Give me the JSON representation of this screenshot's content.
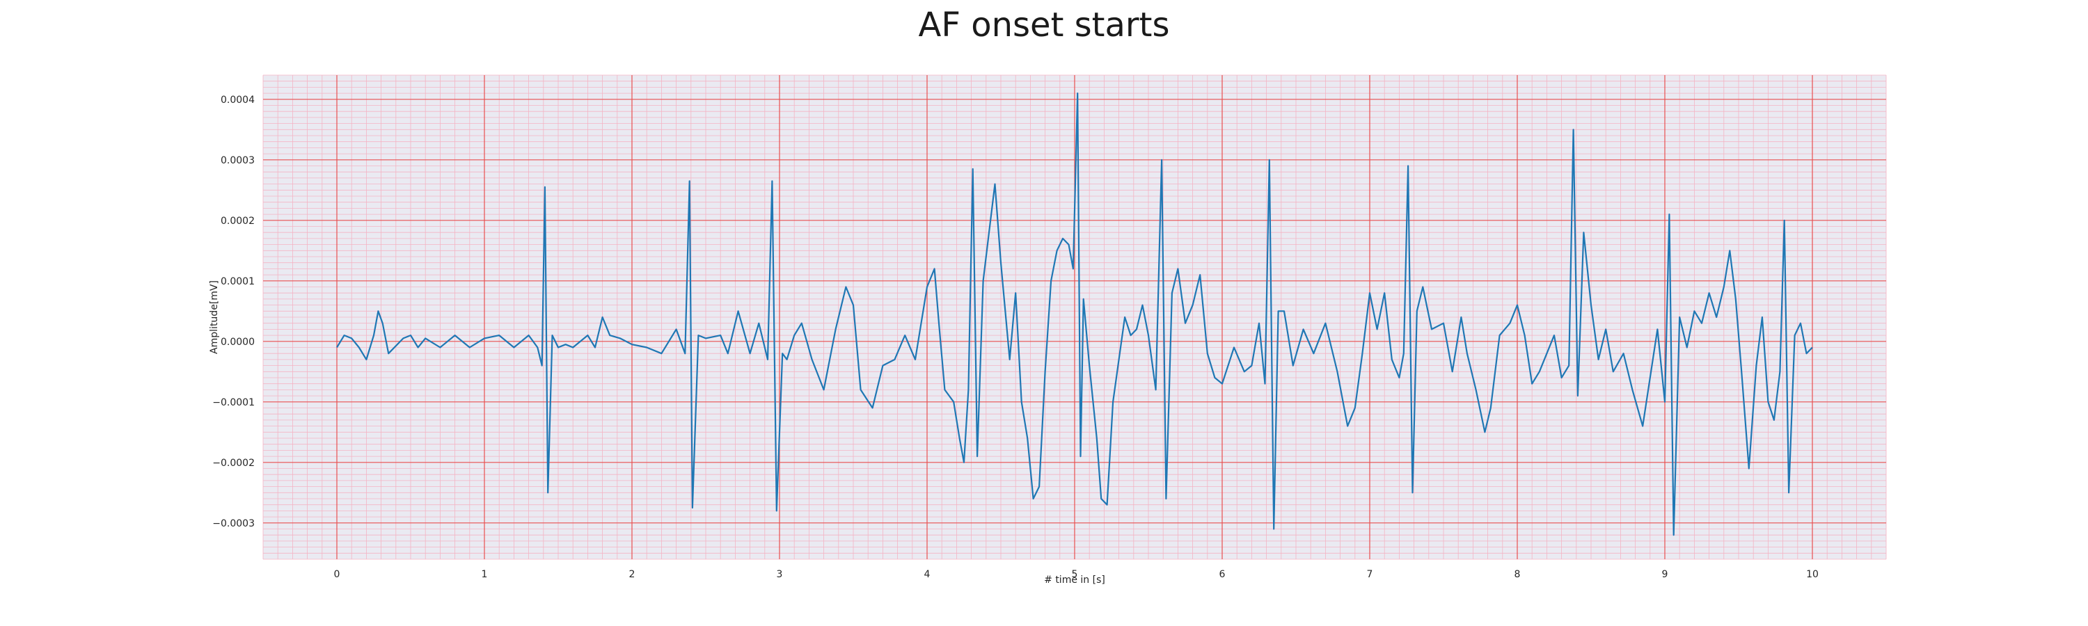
{
  "chart_data": {
    "type": "line",
    "title": "AF onset starts",
    "xlabel": "# time in [s]",
    "ylabel": "Amplitude[mV]",
    "xlim": [
      -0.5,
      10.5
    ],
    "ylim": [
      -0.00036,
      0.00044
    ],
    "x_ticks": [
      0,
      1,
      2,
      3,
      4,
      5,
      6,
      7,
      8,
      9,
      10
    ],
    "x_tick_labels": [
      "0",
      "1",
      "2",
      "3",
      "4",
      "5",
      "6",
      "7",
      "8",
      "9",
      "10"
    ],
    "y_ticks": [
      -0.0003,
      -0.0002,
      -0.0001,
      0,
      0.0001,
      0.0002,
      0.0003,
      0.0004
    ],
    "y_tick_labels": [
      "−0.0003",
      "−0.0002",
      "−0.0001",
      "0.0000",
      "0.0001",
      "0.0002",
      "0.0003",
      "0.0004"
    ],
    "grid": true,
    "minor_grid": true,
    "series": [
      {
        "color": "#1f77b4",
        "points": [
          [
            0.0,
            -1e-05
          ],
          [
            0.05,
            1e-05
          ],
          [
            0.1,
            5e-06
          ],
          [
            0.15,
            -1e-05
          ],
          [
            0.2,
            -3e-05
          ],
          [
            0.25,
            1e-05
          ],
          [
            0.28,
            5e-05
          ],
          [
            0.31,
            3e-05
          ],
          [
            0.35,
            -2e-05
          ],
          [
            0.45,
            5e-06
          ],
          [
            0.5,
            1e-05
          ],
          [
            0.55,
            -1e-05
          ],
          [
            0.6,
            5e-06
          ],
          [
            0.7,
            -1e-05
          ],
          [
            0.8,
            1e-05
          ],
          [
            0.9,
            -1e-05
          ],
          [
            1.0,
            5e-06
          ],
          [
            1.1,
            1e-05
          ],
          [
            1.2,
            -1e-05
          ],
          [
            1.3,
            1e-05
          ],
          [
            1.36,
            -1e-05
          ],
          [
            1.39,
            -4e-05
          ],
          [
            1.41,
            0.000255
          ],
          [
            1.43,
            -0.00025
          ],
          [
            1.46,
            1e-05
          ],
          [
            1.5,
            -1e-05
          ],
          [
            1.55,
            -5e-06
          ],
          [
            1.6,
            -1e-05
          ],
          [
            1.7,
            1e-05
          ],
          [
            1.75,
            -1e-05
          ],
          [
            1.8,
            4e-05
          ],
          [
            1.85,
            1e-05
          ],
          [
            1.92,
            5e-06
          ],
          [
            2.0,
            -5e-06
          ],
          [
            2.1,
            -1e-05
          ],
          [
            2.2,
            -2e-05
          ],
          [
            2.3,
            2e-05
          ],
          [
            2.36,
            -2e-05
          ],
          [
            2.39,
            0.000265
          ],
          [
            2.41,
            -0.000275
          ],
          [
            2.45,
            1e-05
          ],
          [
            2.5,
            5e-06
          ],
          [
            2.6,
            1e-05
          ],
          [
            2.65,
            -2e-05
          ],
          [
            2.72,
            5e-05
          ],
          [
            2.8,
            -2e-05
          ],
          [
            2.86,
            3e-05
          ],
          [
            2.92,
            -3e-05
          ],
          [
            2.95,
            0.000265
          ],
          [
            2.98,
            -0.00028
          ],
          [
            3.02,
            -2e-05
          ],
          [
            3.05,
            -3e-05
          ],
          [
            3.1,
            1e-05
          ],
          [
            3.15,
            3e-05
          ],
          [
            3.22,
            -3e-05
          ],
          [
            3.3,
            -8e-05
          ],
          [
            3.38,
            2e-05
          ],
          [
            3.45,
            9e-05
          ],
          [
            3.5,
            6e-05
          ],
          [
            3.55,
            -8e-05
          ],
          [
            3.63,
            -0.00011
          ],
          [
            3.7,
            -4e-05
          ],
          [
            3.78,
            -3e-05
          ],
          [
            3.85,
            1e-05
          ],
          [
            3.92,
            -3e-05
          ],
          [
            4.0,
            9e-05
          ],
          [
            4.05,
            0.00012
          ],
          [
            4.08,
            3e-05
          ],
          [
            4.12,
            -8e-05
          ],
          [
            4.18,
            -0.0001
          ],
          [
            4.22,
            -0.00016
          ],
          [
            4.25,
            -0.0002
          ],
          [
            4.28,
            -8e-05
          ],
          [
            4.31,
            0.000285
          ],
          [
            4.34,
            -0.00019
          ],
          [
            4.38,
            0.0001
          ],
          [
            4.42,
            0.00018
          ],
          [
            4.46,
            0.00026
          ],
          [
            4.5,
            0.00013
          ],
          [
            4.56,
            -3e-05
          ],
          [
            4.6,
            8e-05
          ],
          [
            4.64,
            -0.0001
          ],
          [
            4.68,
            -0.00016
          ],
          [
            4.72,
            -0.00026
          ],
          [
            4.76,
            -0.00024
          ],
          [
            4.8,
            -5e-05
          ],
          [
            4.84,
            0.0001
          ],
          [
            4.88,
            0.00015
          ],
          [
            4.92,
            0.00017
          ],
          [
            4.96,
            0.00016
          ],
          [
            4.99,
            0.00012
          ],
          [
            5.02,
            0.00041
          ],
          [
            5.04,
            -0.00019
          ],
          [
            5.06,
            7e-05
          ],
          [
            5.1,
            -4e-05
          ],
          [
            5.15,
            -0.00016
          ],
          [
            5.18,
            -0.00026
          ],
          [
            5.22,
            -0.00027
          ],
          [
            5.26,
            -0.0001
          ],
          [
            5.3,
            -3e-05
          ],
          [
            5.34,
            4e-05
          ],
          [
            5.38,
            1e-05
          ],
          [
            5.42,
            2e-05
          ],
          [
            5.46,
            6e-05
          ],
          [
            5.5,
            1e-05
          ],
          [
            5.55,
            -8e-05
          ],
          [
            5.59,
            0.0003
          ],
          [
            5.62,
            -0.00026
          ],
          [
            5.66,
            8e-05
          ],
          [
            5.7,
            0.00012
          ],
          [
            5.75,
            3e-05
          ],
          [
            5.8,
            6e-05
          ],
          [
            5.85,
            0.00011
          ],
          [
            5.9,
            -2e-05
          ],
          [
            5.95,
            -6e-05
          ],
          [
            6.0,
            -7e-05
          ],
          [
            6.08,
            -1e-05
          ],
          [
            6.15,
            -5e-05
          ],
          [
            6.2,
            -4e-05
          ],
          [
            6.25,
            3e-05
          ],
          [
            6.29,
            -7e-05
          ],
          [
            6.32,
            0.0003
          ],
          [
            6.35,
            -0.00031
          ],
          [
            6.38,
            5e-05
          ],
          [
            6.42,
            5e-05
          ],
          [
            6.48,
            -4e-05
          ],
          [
            6.55,
            2e-05
          ],
          [
            6.62,
            -2e-05
          ],
          [
            6.7,
            3e-05
          ],
          [
            6.78,
            -5e-05
          ],
          [
            6.85,
            -0.00014
          ],
          [
            6.9,
            -0.00011
          ],
          [
            6.95,
            -2e-05
          ],
          [
            7.0,
            8e-05
          ],
          [
            7.05,
            2e-05
          ],
          [
            7.1,
            8e-05
          ],
          [
            7.15,
            -3e-05
          ],
          [
            7.2,
            -6e-05
          ],
          [
            7.23,
            -2e-05
          ],
          [
            7.26,
            0.00029
          ],
          [
            7.29,
            -0.00025
          ],
          [
            7.32,
            5e-05
          ],
          [
            7.36,
            9e-05
          ],
          [
            7.42,
            2e-05
          ],
          [
            7.5,
            3e-05
          ],
          [
            7.56,
            -5e-05
          ],
          [
            7.62,
            4e-05
          ],
          [
            7.66,
            -2e-05
          ],
          [
            7.72,
            -8e-05
          ],
          [
            7.78,
            -0.00015
          ],
          [
            7.82,
            -0.00011
          ],
          [
            7.88,
            1e-05
          ],
          [
            7.95,
            3e-05
          ],
          [
            8.0,
            6e-05
          ],
          [
            8.05,
            1e-05
          ],
          [
            8.1,
            -7e-05
          ],
          [
            8.15,
            -5e-05
          ],
          [
            8.2,
            -2e-05
          ],
          [
            8.25,
            1e-05
          ],
          [
            8.3,
            -6e-05
          ],
          [
            8.35,
            -4e-05
          ],
          [
            8.38,
            0.00035
          ],
          [
            8.41,
            -9e-05
          ],
          [
            8.45,
            0.00018
          ],
          [
            8.5,
            6e-05
          ],
          [
            8.55,
            -3e-05
          ],
          [
            8.6,
            2e-05
          ],
          [
            8.65,
            -5e-05
          ],
          [
            8.72,
            -2e-05
          ],
          [
            8.78,
            -8e-05
          ],
          [
            8.85,
            -0.00014
          ],
          [
            8.9,
            -6e-05
          ],
          [
            8.95,
            2e-05
          ],
          [
            9.0,
            -0.0001
          ],
          [
            9.03,
            0.00021
          ],
          [
            9.06,
            -0.00032
          ],
          [
            9.1,
            4e-05
          ],
          [
            9.15,
            -1e-05
          ],
          [
            9.2,
            5e-05
          ],
          [
            9.25,
            3e-05
          ],
          [
            9.3,
            8e-05
          ],
          [
            9.35,
            4e-05
          ],
          [
            9.4,
            9e-05
          ],
          [
            9.44,
            0.00015
          ],
          [
            9.48,
            7e-05
          ],
          [
            9.52,
            -5e-05
          ],
          [
            9.57,
            -0.00021
          ],
          [
            9.62,
            -4e-05
          ],
          [
            9.66,
            4e-05
          ],
          [
            9.7,
            -0.0001
          ],
          [
            9.74,
            -0.00013
          ],
          [
            9.78,
            -5e-05
          ],
          [
            9.81,
            0.0002
          ],
          [
            9.84,
            -0.00025
          ],
          [
            9.88,
            1e-05
          ],
          [
            9.92,
            3e-05
          ],
          [
            9.96,
            -2e-05
          ],
          [
            10.0,
            -1e-05
          ]
        ]
      }
    ]
  }
}
